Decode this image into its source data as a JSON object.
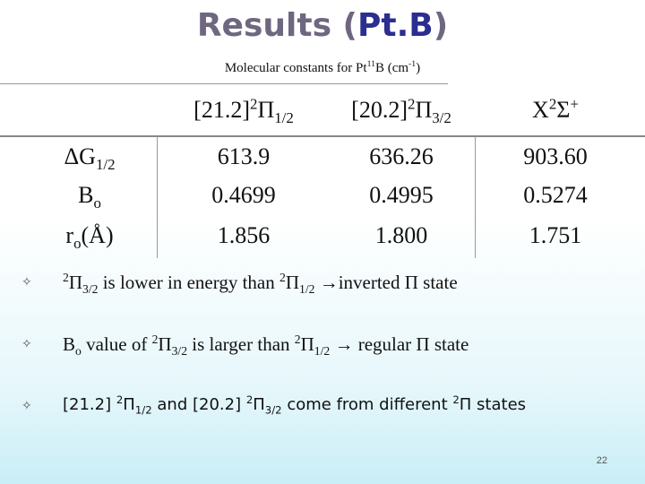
{
  "title": {
    "prefix": "Results (",
    "highlight": "Pt.B",
    "suffix": ")"
  },
  "caption": [
    "Molecular constants for Pt",
    {
      "sup": "11"
    },
    "B (cm",
    {
      "sup": "-1"
    },
    ")"
  ],
  "table": {
    "headers": [
      [
        "[21.2]",
        {
          "sup": "2"
        },
        "Π",
        {
          "sub": "1/2"
        }
      ],
      [
        "[20.2]",
        {
          "sup": "2"
        },
        "Π",
        {
          "sub": "3/2"
        }
      ],
      [
        "X",
        {
          "sup": "2"
        },
        "Σ",
        {
          "sup": "+"
        }
      ]
    ],
    "rows": [
      {
        "label": [
          "ΔG",
          {
            "sub": "1/2"
          }
        ],
        "cells": [
          "613.9",
          "636.26",
          "903.60"
        ]
      },
      {
        "label": [
          "B",
          {
            "sub": "o"
          }
        ],
        "cells": [
          "0.4699",
          "0.4995",
          "0.5274"
        ]
      },
      {
        "label": [
          "r",
          {
            "sub": "o"
          },
          "(Å)"
        ],
        "cells": [
          "1.856",
          "1.800",
          "1.751"
        ]
      }
    ]
  },
  "bullets": [
    [
      {
        "sup": "2"
      },
      "Π",
      {
        "sub": "3/2"
      },
      " is lower in energy than ",
      {
        "sup": "2"
      },
      "Π",
      {
        "sub": "1/2"
      },
      " →inverted Π state"
    ],
    [
      "B",
      {
        "sub": "o"
      },
      " value of ",
      {
        "sup": "2"
      },
      "Π",
      {
        "sub": "3/2"
      },
      " is larger than ",
      {
        "sup": "2"
      },
      "Π",
      {
        "sub": "1/2"
      },
      " → regular Π state"
    ],
    [
      "[21.2] ",
      {
        "sup": "2"
      },
      "Π",
      {
        "sub": "1/2"
      },
      " and [20.2] ",
      {
        "sup": "2"
      },
      "Π",
      {
        "sub": "3/2"
      },
      " come from different ",
      {
        "sup": "2"
      },
      "Π states"
    ]
  ],
  "page_number": "22"
}
